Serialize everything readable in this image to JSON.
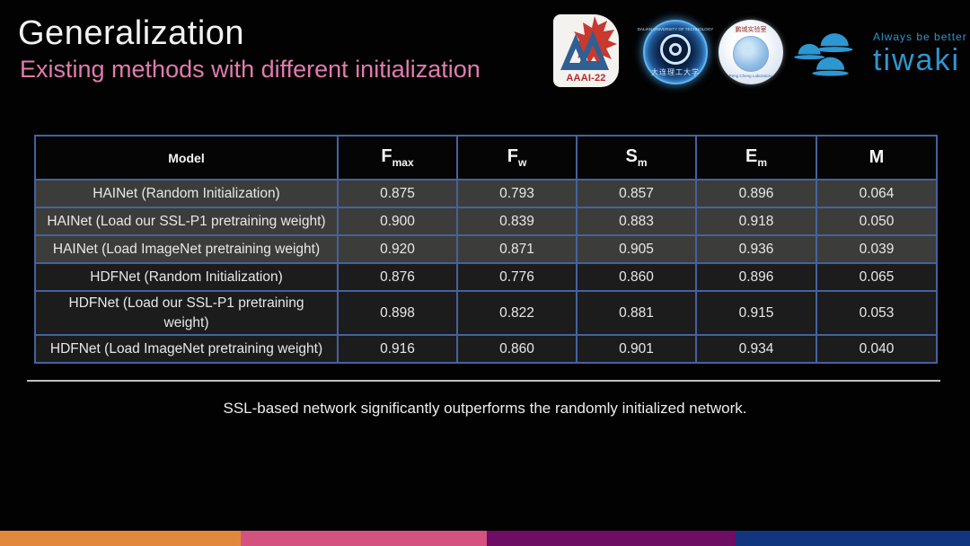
{
  "slide": {
    "title": "Generalization",
    "subtitle": "Existing methods with different initialization",
    "caption": "SSL-based network significantly outperforms the randomly initialized network."
  },
  "logos": {
    "aaai": {
      "label": "AAAI-22"
    },
    "dut": {
      "label_en": "DALIAN UNIVERSITY OF TECHNOLOGY",
      "label_zh": "大连理工大学"
    },
    "pcl": {
      "label_zh": "鹏城实验室",
      "label_en": "Peng Cheng Laboratory"
    },
    "tiwaki": {
      "tagline": "Always be better",
      "brand": "tiwaki"
    }
  },
  "table": {
    "columns": [
      {
        "base": "Model",
        "sub": ""
      },
      {
        "base": "F",
        "sub": "max"
      },
      {
        "base": "F",
        "sub": "w"
      },
      {
        "base": "S",
        "sub": "m"
      },
      {
        "base": "E",
        "sub": "m"
      },
      {
        "base": "M",
        "sub": ""
      }
    ],
    "rows": [
      {
        "group": "hainet",
        "model": "HAINet (Random Initialization)",
        "values": [
          "0.875",
          "0.793",
          "0.857",
          "0.896",
          "0.064"
        ]
      },
      {
        "group": "hainet",
        "model": "HAINet (Load our SSL-P1 pretraining weight)",
        "values": [
          "0.900",
          "0.839",
          "0.883",
          "0.918",
          "0.050"
        ]
      },
      {
        "group": "hainet",
        "model": "HAINet (Load ImageNet pretraining weight)",
        "values": [
          "0.920",
          "0.871",
          "0.905",
          "0.936",
          "0.039"
        ]
      },
      {
        "group": "hdfnet",
        "model": "HDFNet (Random Initialization)",
        "values": [
          "0.876",
          "0.776",
          "0.860",
          "0.896",
          "0.065"
        ]
      },
      {
        "group": "hdfnet",
        "model": "HDFNet (Load our SSL-P1 pretraining\nweight)",
        "values": [
          "0.898",
          "0.822",
          "0.881",
          "0.915",
          "0.053"
        ]
      },
      {
        "group": "hdfnet",
        "model": "HDFNet (Load ImageNet pretraining weight)",
        "values": [
          "0.916",
          "0.860",
          "0.901",
          "0.934",
          "0.040"
        ]
      }
    ]
  },
  "colors": {
    "subtitle_pink": "#E07CAD",
    "table_border": "#44629F",
    "row_hainet_bg": "#3C3C3A",
    "row_hdfnet_bg": "#1C1C1C",
    "tiwaki_blue": "#2E96D0",
    "aaai_red": "#B3282D",
    "aaai_blue": "#2F5F93"
  },
  "footer_bars": [
    {
      "name": "orange",
      "color": "#E2873C"
    },
    {
      "name": "pink",
      "color": "#D55180"
    },
    {
      "name": "purple",
      "color": "#6F0C63"
    },
    {
      "name": "navy",
      "color": "#123580"
    }
  ]
}
